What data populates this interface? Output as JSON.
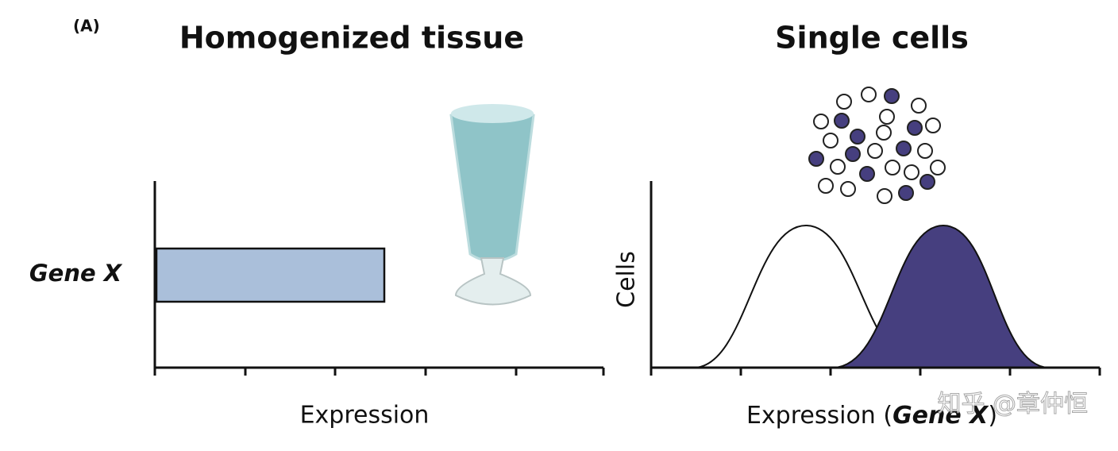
{
  "label": "(A)",
  "panels": [
    {
      "title": "Homogenized tissue",
      "row_label": "Gene X",
      "x_label": "Expression"
    },
    {
      "title": "Single cells",
      "y_label": "Cells",
      "x_label": {
        "text": "Expression (",
        "italic": "Gene X",
        "close": ")"
      }
    }
  ],
  "watermark": "知乎 @章仲恒"
}
